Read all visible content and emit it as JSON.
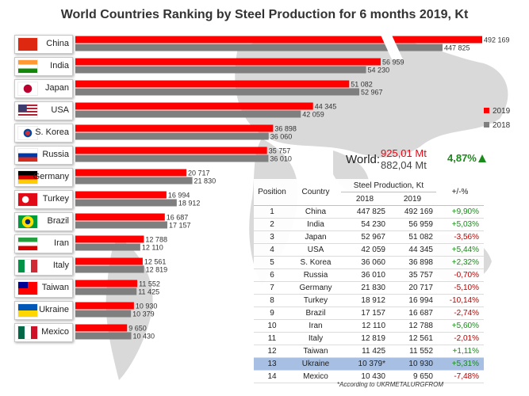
{
  "title": "World Countries Ranking by Steel Production for 6 months 2019, Kt",
  "colors": {
    "y2019": "#ff0000",
    "y2018": "#7f7f7f",
    "positive": "#1a8a1a",
    "negative": "#c00000",
    "highlight": "#a6bfe3"
  },
  "legend": [
    "2019",
    "2018"
  ],
  "world": {
    "label": "World:",
    "v2019": "925,01 Mt",
    "v2018": "882,04 Mt",
    "change": "4,87%"
  },
  "table": {
    "headers": {
      "position": "Position",
      "country": "Country",
      "group": "Steel Production, Kt",
      "y2018": "2018",
      "y2019": "2019",
      "change": "+/-%"
    },
    "rows": [
      {
        "pos": "1",
        "country": "China",
        "v2018": "447 825",
        "v2019": "492 169",
        "chg": "+9,90%"
      },
      {
        "pos": "2",
        "country": "India",
        "v2018": "54 230",
        "v2019": "56 959",
        "chg": "+5,03%"
      },
      {
        "pos": "3",
        "country": "Japan",
        "v2018": "52 967",
        "v2019": "51 082",
        "chg": "-3,56%"
      },
      {
        "pos": "4",
        "country": "USA",
        "v2018": "42 059",
        "v2019": "44 345",
        "chg": "+5,44%"
      },
      {
        "pos": "5",
        "country": "S. Korea",
        "v2018": "36 060",
        "v2019": "36 898",
        "chg": "+2,32%"
      },
      {
        "pos": "6",
        "country": "Russia",
        "v2018": "36 010",
        "v2019": "35 757",
        "chg": "-0,70%"
      },
      {
        "pos": "7",
        "country": "Germany",
        "v2018": "21 830",
        "v2019": "20 717",
        "chg": "-5,10%"
      },
      {
        "pos": "8",
        "country": "Turkey",
        "v2018": "18 912",
        "v2019": "16 994",
        "chg": "-10,14%"
      },
      {
        "pos": "9",
        "country": "Brazil",
        "v2018": "17 157",
        "v2019": "16 687",
        "chg": "-2,74%"
      },
      {
        "pos": "10",
        "country": "Iran",
        "v2018": "12 110",
        "v2019": "12 788",
        "chg": "+5,60%"
      },
      {
        "pos": "11",
        "country": "Italy",
        "v2018": "12 819",
        "v2019": "12 561",
        "chg": "-2,01%"
      },
      {
        "pos": "12",
        "country": "Taiwan",
        "v2018": "11 425",
        "v2019": "11 552",
        "chg": "+1,11%"
      },
      {
        "pos": "13",
        "country": "Ukraine",
        "v2018": "10 379*",
        "v2019": "10 930",
        "chg": "+5,31%"
      },
      {
        "pos": "14",
        "country": "Mexico",
        "v2018": "10 430",
        "v2019": "9 650",
        "chg": "-7,48%"
      }
    ]
  },
  "footnote": "*According to UKRMETALURGFROM",
  "chart_data": {
    "type": "bar",
    "orientation": "horizontal",
    "title": "World Countries Ranking by Steel Production for 6 months 2019, Kt",
    "categories": [
      "China",
      "India",
      "Japan",
      "USA",
      "S. Korea",
      "Russia",
      "Germany",
      "Turkey",
      "Brazil",
      "Iran",
      "Italy",
      "Taiwan",
      "Ukraine",
      "Mexico"
    ],
    "series": [
      {
        "name": "2019",
        "values": [
          492169,
          56959,
          51082,
          44345,
          36898,
          35757,
          20717,
          16994,
          16687,
          12788,
          12561,
          11552,
          10930,
          9650
        ],
        "labels": [
          "492 169",
          "56 959",
          "51 082",
          "44 345",
          "36 898",
          "35 757",
          "20 717",
          "16 994",
          "16 687",
          "12 788",
          "12 561",
          "11 552",
          "10 930",
          "9 650"
        ]
      },
      {
        "name": "2018",
        "values": [
          447825,
          54230,
          52967,
          42059,
          36060,
          36010,
          21830,
          18912,
          17157,
          12110,
          12819,
          11425,
          10379,
          10430
        ],
        "labels": [
          "447 825",
          "54 230",
          "52 967",
          "42 059",
          "36 060",
          "36 010",
          "21 830",
          "18 912",
          "17 157",
          "12 110",
          "12 819",
          "11 425",
          "10 379",
          "10 430"
        ]
      }
    ],
    "broken_axis": true,
    "legend_position": "right"
  }
}
